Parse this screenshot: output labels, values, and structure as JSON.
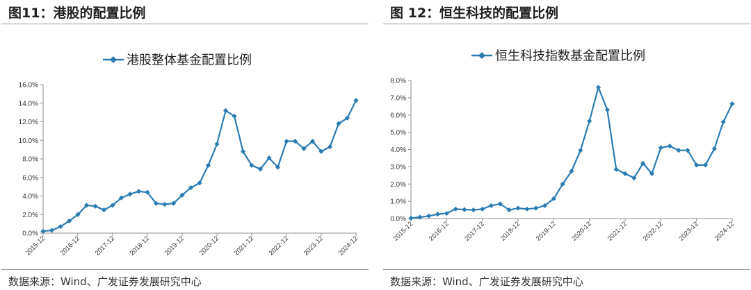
{
  "figures": [
    {
      "title": "图11：港股的配置比例",
      "source": "数据来源：Wind、广发证券发展研究中心"
    },
    {
      "title": "图 12：恒生科技的配置比例",
      "source": "数据来源：Wind、广发证券发展研究中心"
    }
  ],
  "series_color": "#2b7bb3",
  "chart_data": [
    {
      "type": "line",
      "series": [
        {
          "name": "港股整体基金配置比例",
          "values": [
            0.2,
            0.3,
            0.7,
            1.3,
            2.0,
            3.0,
            2.9,
            2.5,
            3.0,
            3.8,
            4.2,
            4.5,
            4.4,
            3.2,
            3.1,
            3.2,
            4.1,
            4.9,
            5.4,
            7.3,
            9.6,
            13.2,
            12.6,
            8.8,
            7.3,
            6.9,
            8.1,
            7.1,
            9.9,
            9.9,
            9.1,
            9.9,
            8.8,
            9.3,
            11.8,
            12.4,
            14.3
          ]
        }
      ],
      "x_tick_labels": [
        "2015-12",
        "2016-12",
        "2017-12",
        "2018-12",
        "2019-12",
        "2020-12",
        "2021-12",
        "2022-12",
        "2023-12",
        "2024-12"
      ],
      "y_tick_labels": [
        "0.0%",
        "2.0%",
        "4.0%",
        "6.0%",
        "8.0%",
        "10.0%",
        "12.0%",
        "14.0%",
        "16.0%"
      ],
      "ylim": [
        0,
        16
      ],
      "legend_position": "top"
    },
    {
      "type": "line",
      "series": [
        {
          "name": "恒生科技指数基金配置比例",
          "values": [
            0.02,
            0.08,
            0.15,
            0.25,
            0.3,
            0.55,
            0.52,
            0.5,
            0.55,
            0.75,
            0.85,
            0.5,
            0.6,
            0.55,
            0.6,
            0.75,
            1.15,
            2.0,
            2.75,
            3.95,
            5.65,
            7.6,
            6.3,
            2.85,
            2.6,
            2.35,
            3.2,
            2.6,
            4.1,
            4.2,
            3.95,
            3.95,
            3.1,
            3.1,
            4.05,
            5.6,
            6.65
          ]
        }
      ],
      "x_tick_labels": [
        "2015-12",
        "2016-12",
        "2017-12",
        "2018-12",
        "2019-12",
        "2020-12",
        "2021-12",
        "2022-12",
        "2023-12",
        "2024-12"
      ],
      "y_tick_labels": [
        "0.0%",
        "1.0%",
        "2.0%",
        "3.0%",
        "4.0%",
        "5.0%",
        "6.0%",
        "7.0%",
        "8.0%"
      ],
      "ylim": [
        0,
        8
      ],
      "legend_position": "top"
    }
  ]
}
